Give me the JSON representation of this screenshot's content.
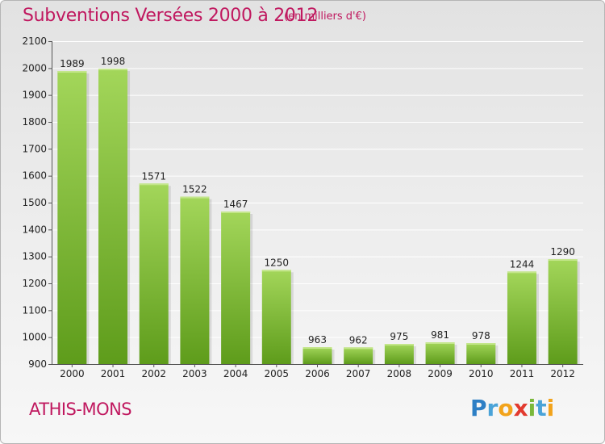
{
  "header": {
    "title": "Subventions Versées 2000 à 2012",
    "subtitle": "(en milliers d'€)"
  },
  "footer": {
    "commune": "ATHIS-MONS",
    "logo": "Proxiti"
  },
  "colors": {
    "accent": "#c0185f",
    "bar_top": "#9fd155",
    "bar_bottom": "#5d9a1a"
  },
  "chart_data": {
    "type": "bar",
    "categories": [
      "2000",
      "2001",
      "2002",
      "2003",
      "2004",
      "2005",
      "2006",
      "2007",
      "2008",
      "2009",
      "2010",
      "2011",
      "2012"
    ],
    "values": [
      1989,
      1998,
      1571,
      1522,
      1467,
      1250,
      963,
      962,
      975,
      981,
      978,
      1244,
      1290
    ],
    "ylim": [
      900,
      2100
    ],
    "yticks": [
      900,
      1000,
      1100,
      1200,
      1300,
      1400,
      1500,
      1600,
      1700,
      1800,
      1900,
      2000,
      2100
    ],
    "grid": true,
    "xlabel": "",
    "ylabel": ""
  }
}
